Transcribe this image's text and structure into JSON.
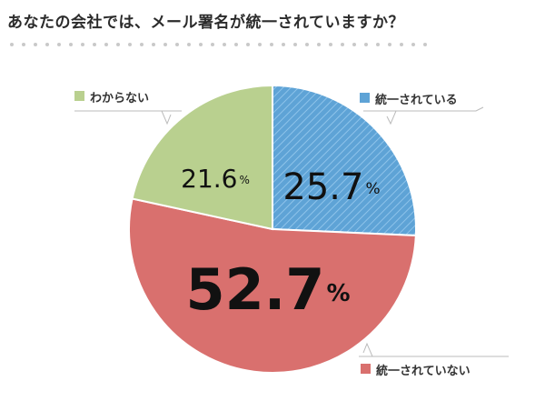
{
  "title": "あなたの会社では、メール署名が統一されていますか？",
  "chart_data": {
    "type": "pie",
    "title": "あなたの会社では、メール署名が統一されていますか？",
    "unit": "%",
    "slices": [
      {
        "label": "統一されている",
        "value": 25.7,
        "color": "#5ea3d6",
        "value_text": "25.7"
      },
      {
        "label": "統一されていない",
        "value": 52.7,
        "color": "#d9706e",
        "value_text": "52.7"
      },
      {
        "label": "わからない",
        "value": 21.6,
        "color": "#b9d08f",
        "value_text": "21.6"
      }
    ],
    "legend": "callouts"
  }
}
